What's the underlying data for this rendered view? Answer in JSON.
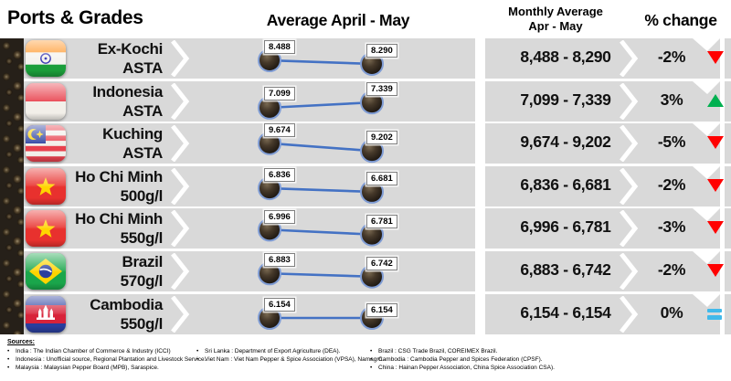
{
  "header": {
    "ports_grades": "Ports & Grades",
    "avg_april_may": "Average April - May",
    "monthly_avg_line1": "Monthly Average",
    "monthly_avg_line2": "Apr - May",
    "pct_change": "% change"
  },
  "rows": [
    {
      "flag": "india",
      "name": "Ex-Kochi",
      "grade": "ASTA",
      "point_labels": [
        "8.488",
        "8.290"
      ],
      "avg_range": "8,488 - 8,290",
      "change": "-2%",
      "trend": "down"
    },
    {
      "flag": "indonesia",
      "name": "Indonesia",
      "grade": "ASTA",
      "point_labels": [
        "7.099",
        "7.339"
      ],
      "avg_range": "7,099 - 7,339",
      "change": "3%",
      "trend": "up"
    },
    {
      "flag": "malaysia",
      "name": "Kuching",
      "grade": "ASTA",
      "point_labels": [
        "9.674",
        "9.202"
      ],
      "avg_range": "9,674 - 9,202",
      "change": "-5%",
      "trend": "down"
    },
    {
      "flag": "vietnam",
      "name": "Ho Chi Minh",
      "grade": "500g/l",
      "point_labels": [
        "6.836",
        "6.681"
      ],
      "avg_range": "6,836 - 6,681",
      "change": "-2%",
      "trend": "down"
    },
    {
      "flag": "vietnam",
      "name": "Ho Chi Minh",
      "grade": "550g/l",
      "point_labels": [
        "6.996",
        "6.781"
      ],
      "avg_range": "6,996 - 6,781",
      "change": "-3%",
      "trend": "down"
    },
    {
      "flag": "brazil",
      "name": "Brazil",
      "grade": "570g/l",
      "point_labels": [
        "6.883",
        "6.742"
      ],
      "avg_range": "6,883 - 6,742",
      "change": "-2%",
      "trend": "down"
    },
    {
      "flag": "cambodia",
      "name": "Cambodia",
      "grade": "550g/l",
      "point_labels": [
        "6.154",
        "6.154"
      ],
      "avg_range": "6,154 - 6,154",
      "change": "0%",
      "trend": "equal"
    }
  ],
  "chart_data": {
    "type": "line",
    "x": [
      "Apr",
      "May"
    ],
    "series": [
      {
        "name": "Ex-Kochi ASTA",
        "values": [
          8488,
          8290
        ]
      },
      {
        "name": "Indonesia ASTA",
        "values": [
          7099,
          7339
        ]
      },
      {
        "name": "Kuching ASTA",
        "values": [
          9674,
          9202
        ]
      },
      {
        "name": "Ho Chi Minh 500g/l",
        "values": [
          6836,
          6681
        ]
      },
      {
        "name": "Ho Chi Minh 550g/l",
        "values": [
          6996,
          6781
        ]
      },
      {
        "name": "Brazil 570g/l",
        "values": [
          6883,
          6742
        ]
      },
      {
        "name": "Cambodia 550g/l",
        "values": [
          6154,
          6154
        ]
      }
    ],
    "title": "Average April - May",
    "note": "one two-point sparkline per port row; point labels use dot thousands separator"
  },
  "footer": {
    "sources_label": "Sources:",
    "columns": [
      [
        "India : The Indian Chamber of Commerce & Industry (ICCI)",
        "Indonesia : Unofficial source, Regional Plantation and Livestock Service.",
        "Malaysia : Malaysian Pepper Board (MPB), Saraspice."
      ],
      [
        "Sri Lanka : Department of Export Agriculture (DEA).",
        "Viet Nam : Viet Nam Pepper & Spice Association (VPSA), Namagro."
      ],
      [
        "Brazil : CSG Trade Brazil, COREIMEX Brazil.",
        "Cambodia : Cambodia Pepper and Spices Federation (CPSF).",
        "China : Hainan Pepper Association, China Spice Association CSA)."
      ]
    ]
  },
  "icons": {
    "row_flags": [
      "india-flag-icon",
      "indonesia-flag-icon",
      "malaysia-flag-icon",
      "vietnam-flag-icon",
      "vietnam-flag-icon",
      "brazil-flag-icon",
      "cambodia-flag-icon"
    ],
    "trend_up": "triangle-up-icon",
    "trend_down": "triangle-down-icon",
    "trend_equal": "equals-icon"
  },
  "colors": {
    "row_bg": "#d9d9d9",
    "line_blue": "#4472c4",
    "down_red": "#ff0000",
    "up_green": "#00b050",
    "equal_blue": "#41b9ea"
  }
}
